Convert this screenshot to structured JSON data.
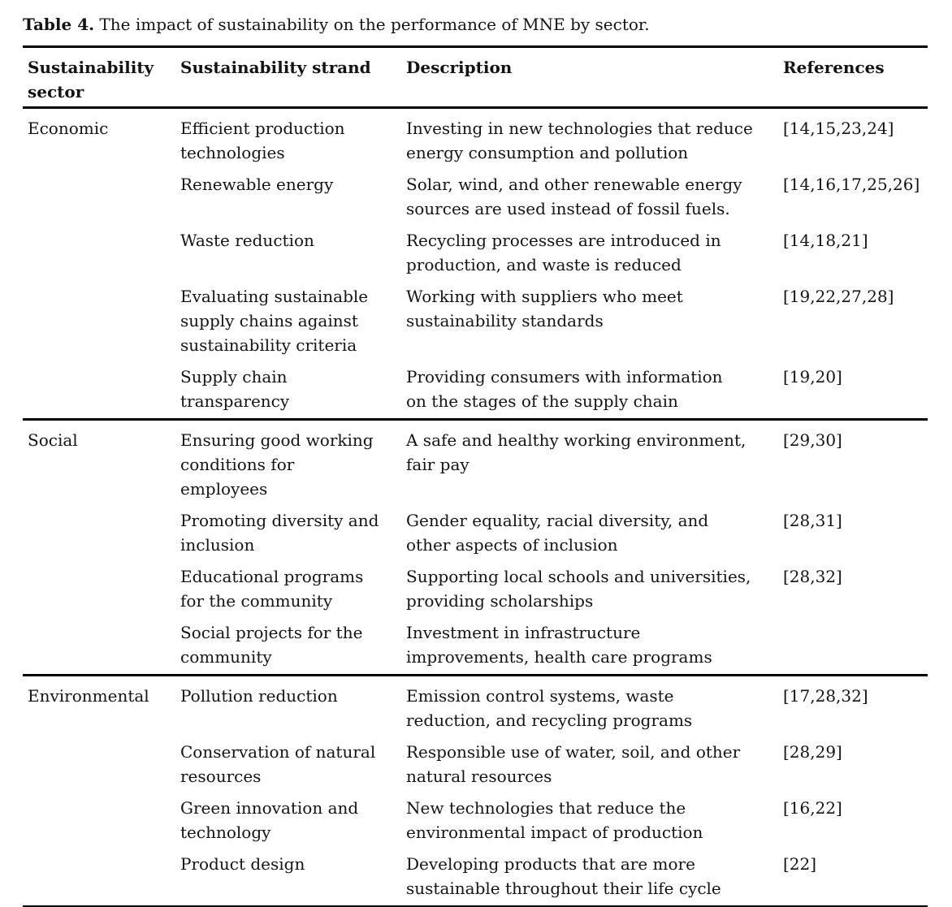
{
  "title": {
    "label": "Table 4.",
    "caption": " The impact of sustainability on the performance of MNE by sector."
  },
  "table": {
    "headers": {
      "sector": "Sustainability\nsector",
      "strand": "Sustainability strand",
      "description": "Description",
      "references": "References"
    },
    "sections": [
      {
        "sector": "Economic",
        "rows": [
          {
            "strand": "Efficient production\ntechnologies",
            "description": "Investing in new technologies that reduce\nenergy consumption and pollution",
            "references": "[14,15,23,24]"
          },
          {
            "strand": "Renewable energy",
            "description": "Solar, wind, and other renewable energy\nsources are used instead of fossil fuels.",
            "references": "[14,16,17,25,26]"
          },
          {
            "strand": "Waste reduction",
            "description": "Recycling processes are introduced in\nproduction, and waste is reduced",
            "references": "[14,18,21]"
          },
          {
            "strand": "Evaluating sustainable\nsupply chains against\nsustainability criteria",
            "description": "Working with suppliers who meet\nsustainability standards",
            "references": "[19,22,27,28]"
          },
          {
            "strand": "Supply chain\ntransparency",
            "description": "Providing consumers with information\non the stages of the supply chain",
            "references": "[19,20]"
          }
        ]
      },
      {
        "sector": "Social",
        "rows": [
          {
            "strand": "Ensuring good working\nconditions for\nemployees",
            "description": "A safe and healthy working environment,\nfair pay",
            "references": "[29,30]"
          },
          {
            "strand": "Promoting diversity and\ninclusion",
            "description": "Gender equality, racial diversity, and\nother aspects of inclusion",
            "references": "[28,31]"
          },
          {
            "strand": "Educational programs\nfor the community",
            "description": "Supporting local schools and universities,\nproviding scholarships",
            "references": "[28,32]"
          },
          {
            "strand": "Social projects for the\ncommunity",
            "description": "Investment in infrastructure\nimprovements, health care programs",
            "references": ""
          }
        ]
      },
      {
        "sector": "Environmental",
        "rows": [
          {
            "strand": "Pollution reduction",
            "description": "Emission control systems, waste\nreduction, and recycling programs",
            "references": "[17,28,32]"
          },
          {
            "strand": "Conservation of natural\nresources",
            "description": "Responsible use of water, soil, and other\nnatural resources",
            "references": "[28,29]"
          },
          {
            "strand": "Green innovation and\ntechnology",
            "description": "New technologies that reduce the\nenvironmental impact of production",
            "references": "[16,22]"
          },
          {
            "strand": "Product design",
            "description": "Developing products that are more\nsustainable throughout their life cycle",
            "references": "[22]"
          }
        ]
      }
    ]
  }
}
